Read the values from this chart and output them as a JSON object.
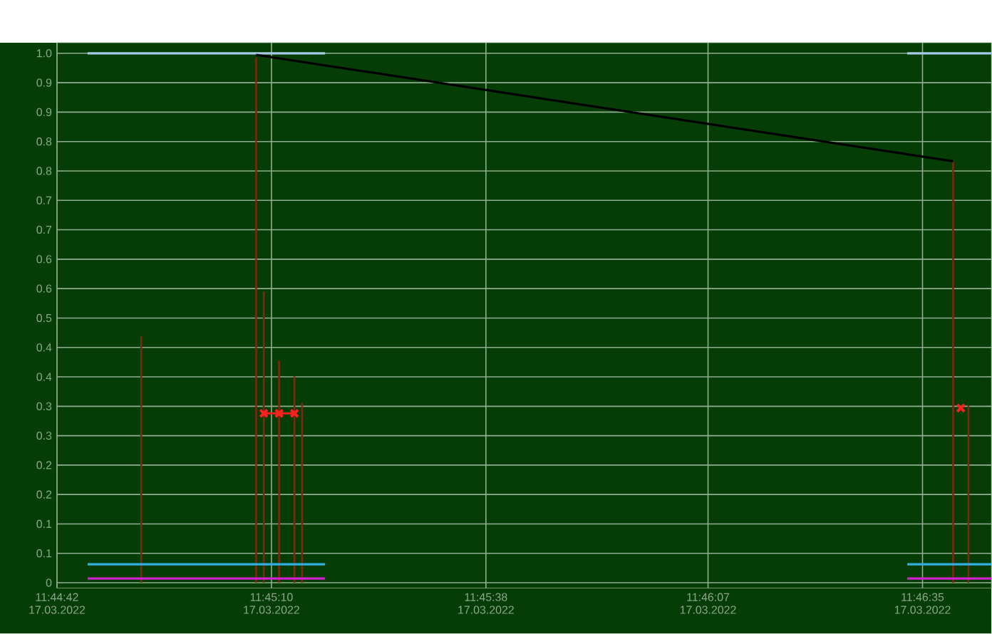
{
  "chart_data": {
    "type": "line",
    "xticks": [
      {
        "value": "2022-03-17T11:44:42",
        "label": "11:44:42 17.03.2022"
      },
      {
        "value": "2022-03-17T11:45:10",
        "label": "11:45:10 17.03.2022"
      },
      {
        "value": "2022-03-17T11:45:38",
        "label": "11:45:38 17.03.2022"
      },
      {
        "value": "2022-03-17T11:46:07",
        "label": "11:46:07 17.03.2022"
      },
      {
        "value": "2022-03-17T11:46:35",
        "label": "11:46:35 17.03.2022"
      }
    ],
    "xlim": [
      "2022-03-17T11:44:42",
      "2022-03-17T11:46:44"
    ],
    "ylim": [
      -0.01,
      1.02
    ],
    "yticks": [
      0,
      {
        "value": 0.0556,
        "label": "0.1"
      },
      {
        "value": 0.1111,
        "label": "0.1"
      },
      {
        "value": 0.1667,
        "label": "0.2"
      },
      {
        "value": 0.2222,
        "label": "0.2"
      },
      {
        "value": 0.2778,
        "label": "0.3"
      },
      {
        "value": 0.3333,
        "label": "0.3"
      },
      {
        "value": 0.3889,
        "label": "0.4"
      },
      {
        "value": 0.4444,
        "label": "0.4"
      },
      0.5,
      {
        "value": 0.5556,
        "label": "0.6"
      },
      {
        "value": 0.6111,
        "label": "0.6"
      },
      {
        "value": 0.6667,
        "label": "0.7"
      },
      {
        "value": 0.7222,
        "label": "0.7"
      },
      {
        "value": 0.7778,
        "label": "0.8"
      },
      {
        "value": 0.8333,
        "label": "0.8"
      },
      {
        "value": 0.8889,
        "label": "0.9"
      },
      {
        "value": 0.9444,
        "label": "0.9"
      },
      {
        "value": 1,
        "label": "1.0"
      }
    ],
    "grid": true,
    "series": [
      {
        "color": "#a8c8e8",
        "x": [
          "2022-03-17T11:44:46",
          "2022-03-17T11:45:17",
          "2022-03-17T11:45:54",
          "2022-03-17T11:46:33",
          "2022-03-17T11:46:44"
        ],
        "values": [
          1.0,
          1.0,
          null,
          1.0,
          1.0
        ]
      },
      {
        "type": "bar",
        "color": "#7a2a10",
        "x": [
          "2022-03-17T11:44:53",
          "2022-03-17T11:45:08",
          "2022-03-17T11:45:09",
          "2022-03-17T11:45:11",
          "2022-03-17T11:45:13",
          "2022-03-17T11:45:14",
          "2022-03-17T11:46:39",
          "2022-03-17T11:46:41"
        ],
        "values": [
          0.466,
          0.992,
          0.55,
          0.42,
          0.39,
          0.34,
          0.796,
          0.335
        ]
      },
      {
        "color": "#000000",
        "x": [
          "2022-03-17T11:45:08",
          "2022-03-17T11:46:39"
        ],
        "values": [
          0.997,
          0.796
        ]
      },
      {
        "color": "#30b0e0",
        "x": [
          "2022-03-17T11:44:46",
          "2022-03-17T11:45:17",
          "2022-03-17T11:45:54",
          "2022-03-17T11:46:33",
          "2022-03-17T11:46:44"
        ],
        "values": [
          0.035,
          0.035,
          null,
          0.035,
          0.035
        ]
      },
      {
        "color": "#d020d0",
        "x": [
          "2022-03-17T11:44:46",
          "2022-03-17T11:45:17",
          "2022-03-17T11:45:54",
          "2022-03-17T11:46:33",
          "2022-03-17T11:46:44"
        ],
        "values": [
          0.008,
          0.008,
          null,
          0.008,
          0.008
        ]
      },
      {
        "color": "#ff2020",
        "marker": "cross",
        "x": [
          "2022-03-17T11:45:09",
          "2022-03-17T11:45:11",
          "2022-03-17T11:45:13",
          "2022-03-17T11:46:12",
          "2022-03-17T11:46:40"
        ],
        "values": [
          0.32,
          0.32,
          0.32,
          null,
          0.33
        ]
      }
    ]
  }
}
